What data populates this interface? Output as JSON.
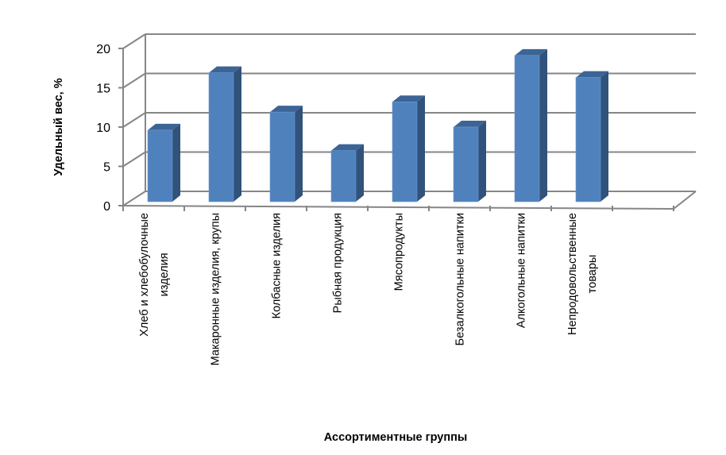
{
  "chart_data": {
    "type": "bar",
    "style": "3d-column",
    "title": "",
    "xlabel": "Ассортиментные группы",
    "ylabel": "Удельный вес, %",
    "ylim": [
      0,
      20
    ],
    "yticks": [
      "0",
      "5",
      "10",
      "15",
      "20"
    ],
    "grid": true,
    "categories": [
      [
        "Хлеб и хлебобулочные",
        "изделия"
      ],
      [
        "Макаронные изделия, крупы"
      ],
      [
        "Колбасные изделия"
      ],
      [
        "Рыбная продукция"
      ],
      [
        "Мясопродукты"
      ],
      [
        "Безалкогольные напитки"
      ],
      [
        "Алкогольные напитки"
      ],
      [
        "Непродовольственные",
        "товары"
      ]
    ],
    "values": [
      9.1,
      16.4,
      11.4,
      6.5,
      12.7,
      9.5,
      18.6,
      15.8
    ],
    "colors": {
      "front": "#4f81bd",
      "side": "#31527a",
      "top": "#3c6496",
      "grid": "#868686"
    }
  }
}
